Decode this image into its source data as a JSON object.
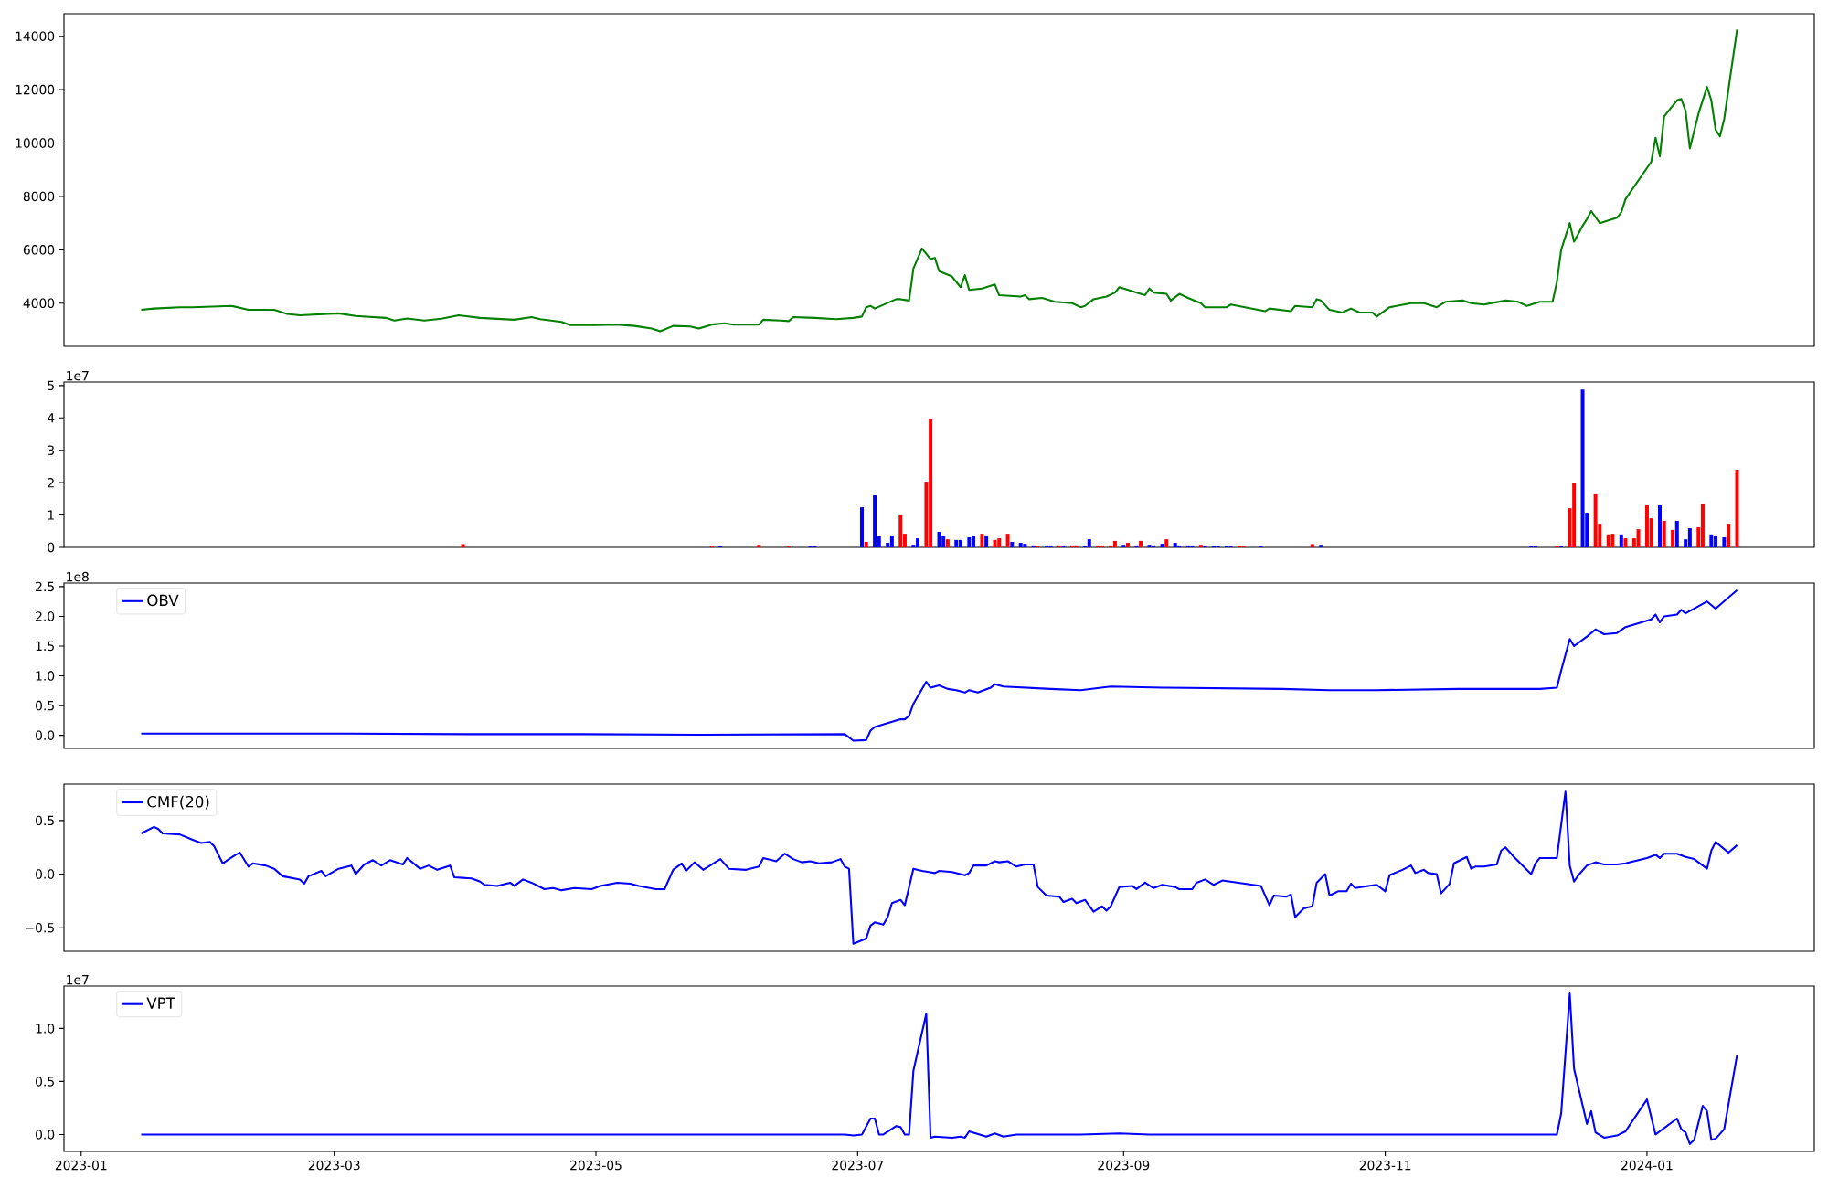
{
  "chart_data": [
    {
      "type": "line",
      "color": "#008000",
      "xlim": [
        "2022-12-28",
        "2024-02-09"
      ],
      "ylim": [
        2384,
        14846
      ],
      "yticks": [
        4000,
        6000,
        8000,
        10000,
        12000,
        14000
      ],
      "tick_labels": "y",
      "x": [
        "2023-01-15",
        "2023-01-18",
        "2023-01-24",
        "2023-01-27",
        "2023-02-05",
        "2023-02-09",
        "2023-02-15",
        "2023-02-18",
        "2023-02-21",
        "2023-03-02",
        "2023-03-06",
        "2023-03-13",
        "2023-03-15",
        "2023-03-18",
        "2023-03-22",
        "2023-03-26",
        "2023-03-30",
        "2023-04-04",
        "2023-04-12",
        "2023-04-16",
        "2023-04-18",
        "2023-04-23",
        "2023-04-25",
        "2023-05-01",
        "2023-05-06",
        "2023-05-10",
        "2023-05-14",
        "2023-05-16",
        "2023-05-19",
        "2023-05-23",
        "2023-05-25",
        "2023-05-28",
        "2023-05-31",
        "2023-06-02",
        "2023-06-08",
        "2023-06-09",
        "2023-06-13",
        "2023-06-15",
        "2023-06-16",
        "2023-06-21",
        "2023-06-26",
        "2023-06-30",
        "2023-07-02",
        "2023-07-03",
        "2023-07-04",
        "2023-07-05",
        "2023-07-10",
        "2023-07-11",
        "2023-07-13",
        "2023-07-14",
        "2023-07-16",
        "2023-07-18",
        "2023-07-19",
        "2023-07-20",
        "2023-07-23",
        "2023-07-25",
        "2023-07-26",
        "2023-07-27",
        "2023-07-30",
        "2023-08-02",
        "2023-08-03",
        "2023-08-08",
        "2023-08-09",
        "2023-08-10",
        "2023-08-13",
        "2023-08-16",
        "2023-08-20",
        "2023-08-22",
        "2023-08-23",
        "2023-08-25",
        "2023-08-28",
        "2023-08-30",
        "2023-08-31",
        "2023-09-06",
        "2023-09-07",
        "2023-09-08",
        "2023-09-11",
        "2023-09-12",
        "2023-09-14",
        "2023-09-16",
        "2023-09-19",
        "2023-09-20",
        "2023-09-25",
        "2023-09-26",
        "2023-10-04",
        "2023-10-05",
        "2023-10-10",
        "2023-10-11",
        "2023-10-15",
        "2023-10-16",
        "2023-10-17",
        "2023-10-19",
        "2023-10-22",
        "2023-10-24",
        "2023-10-26",
        "2023-10-29",
        "2023-10-30",
        "2023-11-02",
        "2023-11-07",
        "2023-11-10",
        "2023-11-13",
        "2023-11-15",
        "2023-11-19",
        "2023-11-21",
        "2023-11-24",
        "2023-11-29",
        "2023-12-02",
        "2023-12-04",
        "2023-12-07",
        "2023-12-10",
        "2023-12-11",
        "2023-12-12",
        "2023-12-14",
        "2023-12-15",
        "2023-12-17",
        "2023-12-18",
        "2023-12-19",
        "2023-12-21",
        "2023-12-25",
        "2023-12-26",
        "2023-12-27",
        "2024-01-02",
        "2024-01-03",
        "2024-01-04",
        "2024-01-05",
        "2024-01-08",
        "2024-01-09",
        "2024-01-10",
        "2024-01-11",
        "2024-01-13",
        "2024-01-15",
        "2024-01-16",
        "2024-01-17",
        "2024-01-18",
        "2024-01-19",
        "2024-01-22"
      ],
      "values": [
        3750,
        3800,
        3850,
        3850,
        3900,
        3750,
        3750,
        3600,
        3550,
        3620,
        3520,
        3450,
        3350,
        3430,
        3350,
        3420,
        3550,
        3450,
        3380,
        3480,
        3400,
        3300,
        3180,
        3180,
        3200,
        3150,
        3050,
        2950,
        3150,
        3130,
        3050,
        3200,
        3250,
        3200,
        3200,
        3380,
        3350,
        3330,
        3480,
        3450,
        3400,
        3450,
        3500,
        3850,
        3900,
        3800,
        4150,
        4150,
        4100,
        5300,
        6050,
        5650,
        5700,
        5200,
        5000,
        4600,
        5050,
        4500,
        4550,
        4700,
        4300,
        4250,
        4300,
        4150,
        4200,
        4050,
        4000,
        3850,
        3900,
        4150,
        4250,
        4400,
        4600,
        4300,
        4550,
        4400,
        4350,
        4100,
        4350,
        4200,
        4000,
        3850,
        3850,
        3950,
        3700,
        3800,
        3700,
        3900,
        3850,
        4150,
        4100,
        3750,
        3650,
        3800,
        3650,
        3650,
        3500,
        3850,
        4000,
        4000,
        3850,
        4050,
        4100,
        4000,
        3950,
        4100,
        4050,
        3900,
        4050,
        4050,
        4800,
        6000,
        7000,
        6300,
        6900,
        7150,
        7450,
        7000,
        7200,
        7400,
        7900,
        9300,
        10200,
        9500,
        11000,
        11600,
        11650,
        11200,
        9800,
        11100,
        12100,
        11600,
        10500,
        10250,
        10900,
        14250
      ]
    },
    {
      "type": "bar",
      "xlim": [
        "2022-12-28",
        "2024-02-09"
      ],
      "ylim": [
        0,
        5.11
      ],
      "yticks": [
        0,
        1,
        2,
        3,
        4,
        5
      ],
      "tick_labels": "y",
      "annotations": [
        "1e7"
      ],
      "x": [
        "2023-03-31",
        "2023-05-28",
        "2023-05-30",
        "2023-06-08",
        "2023-06-15",
        "2023-06-20",
        "2023-06-21",
        "2023-07-02",
        "2023-07-03",
        "2023-07-05",
        "2023-07-06",
        "2023-07-08",
        "2023-07-09",
        "2023-07-11",
        "2023-07-12",
        "2023-07-14",
        "2023-07-15",
        "2023-07-17",
        "2023-07-18",
        "2023-07-20",
        "2023-07-21",
        "2023-07-22",
        "2023-07-24",
        "2023-07-25",
        "2023-07-27",
        "2023-07-28",
        "2023-07-30",
        "2023-07-31",
        "2023-08-02",
        "2023-08-03",
        "2023-08-05",
        "2023-08-06",
        "2023-08-08",
        "2023-08-09",
        "2023-08-11",
        "2023-08-12",
        "2023-08-14",
        "2023-08-15",
        "2023-08-17",
        "2023-08-18",
        "2023-08-20",
        "2023-08-21",
        "2023-08-23",
        "2023-08-24",
        "2023-08-26",
        "2023-08-27",
        "2023-08-29",
        "2023-08-30",
        "2023-09-01",
        "2023-09-02",
        "2023-09-04",
        "2023-09-05",
        "2023-09-07",
        "2023-09-08",
        "2023-09-10",
        "2023-09-11",
        "2023-09-13",
        "2023-09-14",
        "2023-09-16",
        "2023-09-17",
        "2023-09-19",
        "2023-09-20",
        "2023-09-22",
        "2023-09-23",
        "2023-09-25",
        "2023-09-26",
        "2023-09-28",
        "2023-09-29",
        "2023-10-03",
        "2023-10-15",
        "2023-10-17",
        "2023-12-05",
        "2023-12-06",
        "2023-12-11",
        "2023-12-12",
        "2023-12-14",
        "2023-12-15",
        "2023-12-17",
        "2023-12-18",
        "2023-12-20",
        "2023-12-21",
        "2023-12-23",
        "2023-12-24",
        "2023-12-26",
        "2023-12-27",
        "2023-12-29",
        "2023-12-30",
        "2024-01-01",
        "2024-01-02",
        "2024-01-04",
        "2024-01-05",
        "2024-01-07",
        "2024-01-08",
        "2024-01-10",
        "2024-01-11",
        "2024-01-13",
        "2024-01-14",
        "2024-01-16",
        "2024-01-17",
        "2024-01-19",
        "2024-01-20",
        "2024-01-22"
      ],
      "values": [
        0.1,
        0.05,
        0.05,
        0.08,
        0.05,
        0.03,
        0.03,
        1.24,
        0.17,
        1.61,
        0.34,
        0.14,
        0.37,
        0.99,
        0.42,
        0.08,
        0.28,
        2.03,
        3.95,
        0.48,
        0.34,
        0.25,
        0.23,
        0.23,
        0.31,
        0.34,
        0.42,
        0.37,
        0.23,
        0.28,
        0.42,
        0.17,
        0.14,
        0.11,
        0.06,
        0.03,
        0.06,
        0.06,
        0.06,
        0.06,
        0.06,
        0.06,
        0.03,
        0.25,
        0.06,
        0.06,
        0.06,
        0.2,
        0.08,
        0.14,
        0.06,
        0.2,
        0.08,
        0.06,
        0.11,
        0.25,
        0.14,
        0.06,
        0.06,
        0.06,
        0.08,
        0.03,
        0.03,
        0.03,
        0.03,
        0.03,
        0.03,
        0.03,
        0.03,
        0.1,
        0.08,
        0.03,
        0.03,
        0.03,
        0.03,
        1.21,
        2.0,
        4.88,
        1.07,
        1.64,
        0.73,
        0.4,
        0.42,
        0.4,
        0.28,
        0.28,
        0.56,
        1.3,
        0.9,
        1.3,
        0.82,
        0.54,
        0.82,
        0.25,
        0.59,
        0.62,
        1.33,
        0.4,
        0.34,
        0.31,
        0.73,
        2.4
      ],
      "colors": [
        "#ff0000",
        "#ff0000",
        "#0000ff",
        "#ff0000",
        "#ff0000",
        "#0000ff",
        "#0000ff",
        "#0000ff",
        "#ff0000",
        "#0000ff",
        "#0000ff",
        "#0000ff",
        "#0000ff",
        "#ff0000",
        "#ff0000",
        "#0000ff",
        "#0000ff",
        "#ff0000",
        "#ff0000",
        "#0000ff",
        "#0000ff",
        "#ff0000",
        "#0000ff",
        "#0000ff",
        "#0000ff",
        "#0000ff",
        "#ff0000",
        "#0000ff",
        "#ff0000",
        "#ff0000",
        "#ff0000",
        "#0000ff",
        "#0000ff",
        "#0000ff",
        "#0000ff",
        "#ff0000",
        "#0000ff",
        "#0000ff",
        "#ff0000",
        "#0000ff",
        "#ff0000",
        "#ff0000",
        "#0000ff",
        "#0000ff",
        "#ff0000",
        "#ff0000",
        "#ff0000",
        "#ff0000",
        "#0000ff",
        "#ff0000",
        "#0000ff",
        "#ff0000",
        "#0000ff",
        "#0000ff",
        "#0000ff",
        "#ff0000",
        "#0000ff",
        "#0000ff",
        "#0000ff",
        "#0000ff",
        "#ff0000",
        "#0000ff",
        "#0000ff",
        "#0000ff",
        "#0000ff",
        "#0000ff",
        "#ff0000",
        "#ff0000",
        "#0000ff",
        "#ff0000",
        "#0000ff",
        "#0000ff",
        "#0000ff",
        "#ff0000",
        "#0000ff",
        "#ff0000",
        "#ff0000",
        "#0000ff",
        "#0000ff",
        "#ff0000",
        "#ff0000",
        "#ff0000",
        "#ff0000",
        "#0000ff",
        "#ff0000",
        "#ff0000",
        "#ff0000",
        "#ff0000",
        "#ff0000",
        "#0000ff",
        "#ff0000",
        "#ff0000",
        "#0000ff",
        "#0000ff",
        "#0000ff",
        "#ff0000",
        "#ff0000",
        "#0000ff",
        "#0000ff",
        "#0000ff",
        "#ff0000",
        "#ff0000"
      ]
    },
    {
      "type": "line",
      "xlim": [
        "2022-12-28",
        "2024-02-09"
      ],
      "ylim": [
        -0.22,
        2.56
      ],
      "yticks": [
        {
          "value": 0,
          "label": "0.0"
        },
        0.5,
        {
          "value": 1,
          "label": "1.0"
        },
        1.5,
        {
          "value": 2,
          "label": "2.0"
        },
        2.5
      ],
      "tick_labels": "y",
      "legend": "top left",
      "annotations": [
        "1e8"
      ],
      "x": [
        "2023-01-15",
        "2023-02-05",
        "2023-03-04",
        "2023-04-01",
        "2023-04-28",
        "2023-05-25",
        "2023-06-28",
        "2023-06-30",
        "2023-07-03",
        "2023-07-04",
        "2023-07-05",
        "2023-07-11",
        "2023-07-12",
        "2023-07-13",
        "2023-07-14",
        "2023-07-17",
        "2023-07-18",
        "2023-07-20",
        "2023-07-22",
        "2023-07-24",
        "2023-07-26",
        "2023-07-27",
        "2023-07-29",
        "2023-08-01",
        "2023-08-02",
        "2023-08-04",
        "2023-08-15",
        "2023-08-22",
        "2023-08-29",
        "2023-09-11",
        "2023-10-08",
        "2023-10-19",
        "2023-10-30",
        "2023-11-18",
        "2023-12-07",
        "2023-12-11",
        "2023-12-12",
        "2023-12-14",
        "2023-12-15",
        "2023-12-18",
        "2023-12-20",
        "2023-12-22",
        "2023-12-25",
        "2023-12-27",
        "2024-01-02",
        "2024-01-03",
        "2024-01-04",
        "2024-01-05",
        "2024-01-08",
        "2024-01-09",
        "2024-01-10",
        "2024-01-13",
        "2024-01-15",
        "2024-01-17",
        "2024-01-22"
      ],
      "series": [
        {
          "name": "OBV",
          "color": "#0000ff",
          "values": [
            0.03,
            0.03,
            0.03,
            0.02,
            0.02,
            0.01,
            0.02,
            -0.09,
            -0.08,
            0.08,
            0.14,
            0.27,
            0.27,
            0.33,
            0.53,
            0.9,
            0.8,
            0.84,
            0.78,
            0.76,
            0.72,
            0.76,
            0.72,
            0.8,
            0.86,
            0.82,
            0.78,
            0.76,
            0.82,
            0.8,
            0.78,
            0.76,
            0.76,
            0.78,
            0.78,
            0.8,
            1.09,
            1.62,
            1.5,
            1.66,
            1.78,
            1.7,
            1.72,
            1.82,
            1.95,
            2.03,
            1.9,
            2.0,
            2.03,
            2.11,
            2.05,
            2.17,
            2.25,
            2.13,
            2.44
          ]
        }
      ]
    },
    {
      "type": "line",
      "xlim": [
        "2022-12-28",
        "2024-02-09"
      ],
      "ylim": [
        -0.72,
        0.84
      ],
      "yticks": [
        {
          "value": -0.5,
          "label": "−0.5"
        },
        {
          "value": 0,
          "label": "0.0"
        },
        0.5
      ],
      "tick_labels": "y",
      "legend": "top left",
      "x": [
        "2023-01-15",
        "2023-01-18",
        "2023-01-19",
        "2023-01-20",
        "2023-01-24",
        "2023-01-27",
        "2023-01-29",
        "2023-01-31",
        "2023-02-01",
        "2023-02-03",
        "2023-02-06",
        "2023-02-07",
        "2023-02-09",
        "2023-02-10",
        "2023-02-13",
        "2023-02-15",
        "2023-02-17",
        "2023-02-21",
        "2023-02-22",
        "2023-02-23",
        "2023-02-26",
        "2023-02-27",
        "2023-03-02",
        "2023-03-05",
        "2023-03-06",
        "2023-03-08",
        "2023-03-10",
        "2023-03-12",
        "2023-03-14",
        "2023-03-17",
        "2023-03-18",
        "2023-03-21",
        "2023-03-23",
        "2023-03-25",
        "2023-03-28",
        "2023-03-29",
        "2023-04-02",
        "2023-04-04",
        "2023-04-05",
        "2023-04-08",
        "2023-04-11",
        "2023-04-12",
        "2023-04-14",
        "2023-04-16",
        "2023-04-19",
        "2023-04-21",
        "2023-04-23",
        "2023-04-26",
        "2023-04-30",
        "2023-05-02",
        "2023-05-06",
        "2023-05-09",
        "2023-05-11",
        "2023-05-15",
        "2023-05-17",
        "2023-05-19",
        "2023-05-21",
        "2023-05-22",
        "2023-05-24",
        "2023-05-26",
        "2023-05-30",
        "2023-06-01",
        "2023-06-05",
        "2023-06-08",
        "2023-06-09",
        "2023-06-11",
        "2023-06-12",
        "2023-06-14",
        "2023-06-16",
        "2023-06-18",
        "2023-06-20",
        "2023-06-22",
        "2023-06-25",
        "2023-06-27",
        "2023-06-28",
        "2023-06-29",
        "2023-06-30",
        "2023-07-03",
        "2023-07-04",
        "2023-07-05",
        "2023-07-07",
        "2023-07-08",
        "2023-07-09",
        "2023-07-11",
        "2023-07-12",
        "2023-07-14",
        "2023-07-16",
        "2023-07-19",
        "2023-07-20",
        "2023-07-23",
        "2023-07-26",
        "2023-07-27",
        "2023-07-28",
        "2023-07-31",
        "2023-08-02",
        "2023-08-03",
        "2023-08-05",
        "2023-08-07",
        "2023-08-09",
        "2023-08-11",
        "2023-08-12",
        "2023-08-14",
        "2023-08-17",
        "2023-08-18",
        "2023-08-20",
        "2023-08-21",
        "2023-08-23",
        "2023-08-25",
        "2023-08-27",
        "2023-08-28",
        "2023-08-29",
        "2023-08-31",
        "2023-09-03",
        "2023-09-04",
        "2023-09-06",
        "2023-09-08",
        "2023-09-10",
        "2023-09-13",
        "2023-09-14",
        "2023-09-17",
        "2023-09-18",
        "2023-09-20",
        "2023-09-22",
        "2023-09-24",
        "2023-10-03",
        "2023-10-05",
        "2023-10-06",
        "2023-10-09",
        "2023-10-10",
        "2023-10-11",
        "2023-10-13",
        "2023-10-15",
        "2023-10-16",
        "2023-10-18",
        "2023-10-19",
        "2023-10-21",
        "2023-10-23",
        "2023-10-24",
        "2023-10-25",
        "2023-10-28",
        "2023-10-30",
        "2023-11-01",
        "2023-11-02",
        "2023-11-05",
        "2023-11-07",
        "2023-11-08",
        "2023-11-10",
        "2023-11-11",
        "2023-11-13",
        "2023-11-14",
        "2023-11-16",
        "2023-11-17",
        "2023-11-20",
        "2023-11-21",
        "2023-11-22",
        "2023-11-24",
        "2023-11-27",
        "2023-11-28",
        "2023-11-29",
        "2023-12-01",
        "2023-12-05",
        "2023-12-06",
        "2023-12-07",
        "2023-12-11",
        "2023-12-13",
        "2023-12-14",
        "2023-12-15",
        "2023-12-16",
        "2023-12-18",
        "2023-12-20",
        "2023-12-22",
        "2023-12-25",
        "2023-12-27",
        "2024-01-01",
        "2024-01-03",
        "2024-01-04",
        "2024-01-05",
        "2024-01-08",
        "2024-01-10",
        "2024-01-12",
        "2024-01-15",
        "2024-01-16",
        "2024-01-17",
        "2024-01-20",
        "2024-01-22"
      ],
      "series": [
        {
          "name": "CMF(20)",
          "color": "#0000ff",
          "values": [
            0.38,
            0.44,
            0.42,
            0.38,
            0.37,
            0.32,
            0.29,
            0.3,
            0.26,
            0.1,
            0.18,
            0.2,
            0.07,
            0.1,
            0.08,
            0.05,
            -0.02,
            -0.05,
            -0.09,
            -0.02,
            0.03,
            -0.02,
            0.05,
            0.08,
            0.0,
            0.09,
            0.13,
            0.08,
            0.13,
            0.09,
            0.15,
            0.05,
            0.08,
            0.04,
            0.08,
            -0.03,
            -0.04,
            -0.07,
            -0.1,
            -0.11,
            -0.08,
            -0.11,
            -0.05,
            -0.08,
            -0.14,
            -0.13,
            -0.15,
            -0.13,
            -0.14,
            -0.11,
            -0.08,
            -0.09,
            -0.11,
            -0.14,
            -0.14,
            0.04,
            0.1,
            0.03,
            0.11,
            0.04,
            0.14,
            0.05,
            0.04,
            0.07,
            0.15,
            0.13,
            0.12,
            0.19,
            0.14,
            0.11,
            0.12,
            0.1,
            0.11,
            0.14,
            0.07,
            0.05,
            -0.65,
            -0.6,
            -0.48,
            -0.45,
            -0.47,
            -0.4,
            -0.27,
            -0.24,
            -0.29,
            0.05,
            0.03,
            0.01,
            0.03,
            0.02,
            -0.01,
            0.01,
            0.08,
            0.08,
            0.12,
            0.11,
            0.12,
            0.07,
            0.09,
            0.09,
            -0.12,
            -0.2,
            -0.21,
            -0.26,
            -0.23,
            -0.27,
            -0.24,
            -0.35,
            -0.3,
            -0.34,
            -0.3,
            -0.12,
            -0.11,
            -0.14,
            -0.08,
            -0.13,
            -0.1,
            -0.12,
            -0.14,
            -0.14,
            -0.08,
            -0.05,
            -0.1,
            -0.06,
            -0.11,
            -0.29,
            -0.2,
            -0.21,
            -0.19,
            -0.4,
            -0.32,
            -0.3,
            -0.08,
            0.0,
            -0.2,
            -0.16,
            -0.16,
            -0.09,
            -0.13,
            -0.11,
            -0.1,
            -0.16,
            -0.01,
            0.04,
            0.08,
            0.01,
            0.04,
            0.01,
            0.0,
            -0.18,
            -0.09,
            0.1,
            0.16,
            0.05,
            0.07,
            0.07,
            0.09,
            0.22,
            0.25,
            0.16,
            0.0,
            0.1,
            0.15,
            0.15,
            0.77,
            0.08,
            -0.07,
            -0.01,
            0.08,
            0.11,
            0.09,
            0.09,
            0.1,
            0.15,
            0.18,
            0.15,
            0.19,
            0.19,
            0.16,
            0.14,
            0.05,
            0.22,
            0.3,
            0.2,
            0.27
          ]
        }
      ]
    },
    {
      "type": "line",
      "xlim": [
        "2022-12-28",
        "2024-02-09"
      ],
      "ylim": [
        -0.16,
        1.4
      ],
      "yticks": [
        {
          "value": 0,
          "label": "0.0"
        },
        0.5,
        {
          "value": 1,
          "label": "1.0"
        }
      ],
      "xticks": [
        "2023-01",
        "2023-03",
        "2023-05",
        "2023-07",
        "2023-09",
        "2023-11",
        "2024-01"
      ],
      "legend": "top left",
      "annotations": [
        "1e7"
      ],
      "x": [
        "2023-01-15",
        "2023-04-01",
        "2023-06-28",
        "2023-06-30",
        "2023-07-02",
        "2023-07-04",
        "2023-07-05",
        "2023-07-06",
        "2023-07-07",
        "2023-07-10",
        "2023-07-11",
        "2023-07-12",
        "2023-07-13",
        "2023-07-14",
        "2023-07-17",
        "2023-07-18",
        "2023-07-19",
        "2023-07-23",
        "2023-07-25",
        "2023-07-26",
        "2023-07-27",
        "2023-07-31",
        "2023-08-02",
        "2023-08-04",
        "2023-08-07",
        "2023-08-15",
        "2023-08-22",
        "2023-08-31",
        "2023-09-07",
        "2023-10-08",
        "2023-12-07",
        "2023-12-11",
        "2023-12-12",
        "2023-12-14",
        "2023-12-15",
        "2023-12-18",
        "2023-12-19",
        "2023-12-20",
        "2023-12-22",
        "2023-12-25",
        "2023-12-27",
        "2024-01-01",
        "2024-01-03",
        "2024-01-08",
        "2024-01-09",
        "2024-01-10",
        "2024-01-11",
        "2024-01-12",
        "2024-01-14",
        "2024-01-15",
        "2024-01-16",
        "2024-01-17",
        "2024-01-19",
        "2024-01-22"
      ],
      "series": [
        {
          "name": "VPT",
          "color": "#0000ff",
          "values": [
            0.0,
            0.0,
            0.0,
            -0.01,
            0.0,
            0.15,
            0.15,
            0.0,
            0.0,
            0.08,
            0.07,
            0.0,
            0.0,
            0.6,
            1.14,
            -0.03,
            -0.02,
            -0.03,
            -0.02,
            -0.03,
            0.03,
            -0.02,
            0.01,
            -0.02,
            0.0,
            0.0,
            0.0,
            0.01,
            0.0,
            0.0,
            0.0,
            0.0,
            0.2,
            1.33,
            0.62,
            0.1,
            0.22,
            0.02,
            -0.03,
            -0.01,
            0.03,
            0.33,
            0.0,
            0.15,
            0.05,
            0.02,
            -0.09,
            -0.05,
            0.27,
            0.22,
            -0.05,
            -0.04,
            0.05,
            0.75
          ]
        }
      ]
    }
  ]
}
